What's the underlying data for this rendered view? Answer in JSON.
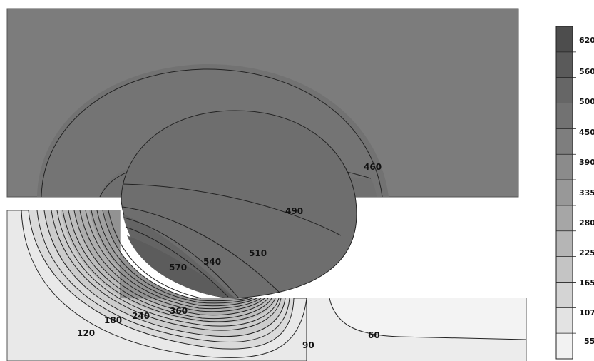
{
  "plot": {
    "contour_labels": [
      {
        "id": "460",
        "text": "460"
      },
      {
        "id": "490",
        "text": "490"
      },
      {
        "id": "510",
        "text": "510"
      },
      {
        "id": "540",
        "text": "540"
      },
      {
        "id": "570",
        "text": "570"
      },
      {
        "id": "360",
        "text": "360"
      },
      {
        "id": "240",
        "text": "240"
      },
      {
        "id": "180",
        "text": "180"
      },
      {
        "id": "120",
        "text": "120"
      },
      {
        "id": "90",
        "text": "90"
      },
      {
        "id": "60",
        "text": "60"
      }
    ]
  },
  "legend": {
    "labels": [
      "620",
      "560",
      "500",
      "450",
      "390",
      "335",
      "280",
      "225",
      "165",
      "107",
      "55"
    ],
    "colors": [
      "#4d4d4d",
      "#5a5a5a",
      "#666666",
      "#727272",
      "#7e7e7e",
      "#8b8b8b",
      "#989898",
      "#a6a6a6",
      "#b5b5b5",
      "#c4c4c4",
      "#d4d4d4",
      "#e3e3e3",
      "#f2f2f2"
    ]
  }
}
